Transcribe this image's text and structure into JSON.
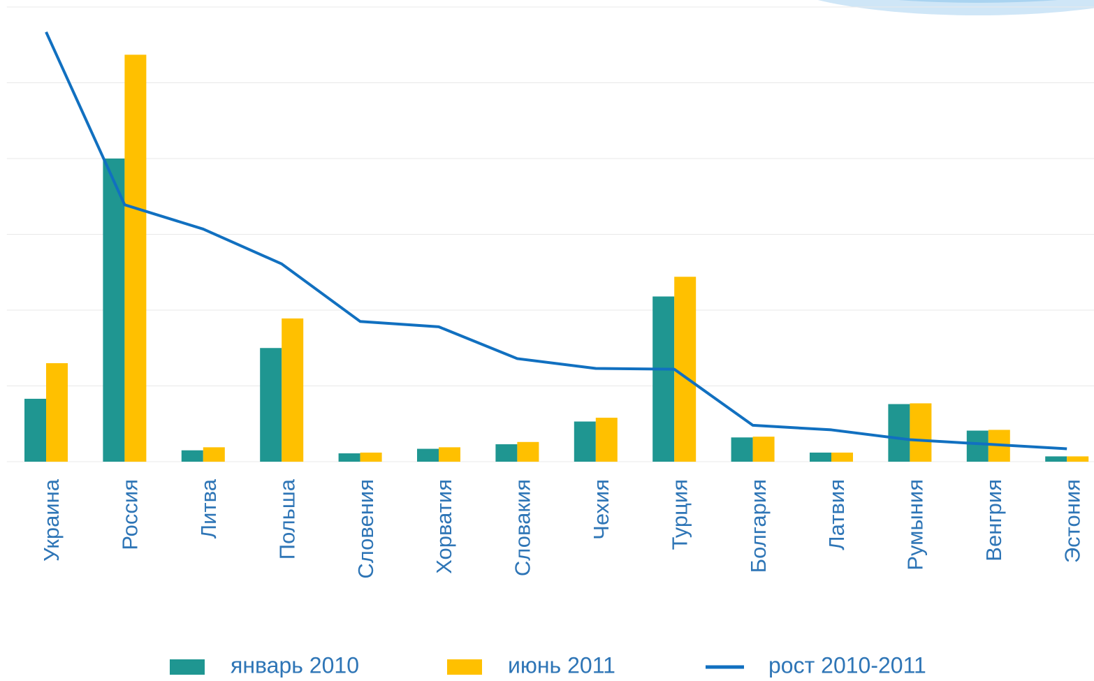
{
  "chart_data": {
    "type": "bar",
    "categories": [
      "Украина",
      "Россия",
      "Литва",
      "Польша",
      "Словения",
      "Хорватия",
      "Словакия",
      "Чехия",
      "Турция",
      "Болгария",
      "Латвия",
      "Румыния",
      "Венгрия",
      "Эстония"
    ],
    "series": [
      {
        "name": "январь 2010",
        "type": "bar",
        "color": "#1f9691",
        "values": [
          0.83,
          4.0,
          0.15,
          1.5,
          0.11,
          0.17,
          0.23,
          0.53,
          2.18,
          0.32,
          0.12,
          0.76,
          0.41,
          0.07
        ]
      },
      {
        "name": "июнь 2011",
        "type": "bar",
        "color": "#ffc000",
        "values": [
          1.3,
          5.37,
          0.19,
          1.89,
          0.12,
          0.19,
          0.26,
          0.58,
          2.44,
          0.33,
          0.12,
          0.77,
          0.42,
          0.07
        ]
      },
      {
        "name": "рост 2010-2011",
        "type": "line",
        "color": "#1170c0",
        "values": [
          5.67,
          3.39,
          3.07,
          2.61,
          1.85,
          1.78,
          1.36,
          1.23,
          1.22,
          0.48,
          0.42,
          0.29,
          0.23,
          0.17
        ]
      }
    ],
    "ylim": [
      0,
      6
    ],
    "yticks": [
      0,
      1,
      2,
      3,
      4,
      5,
      6
    ],
    "grid": true,
    "legend": "bottom"
  }
}
